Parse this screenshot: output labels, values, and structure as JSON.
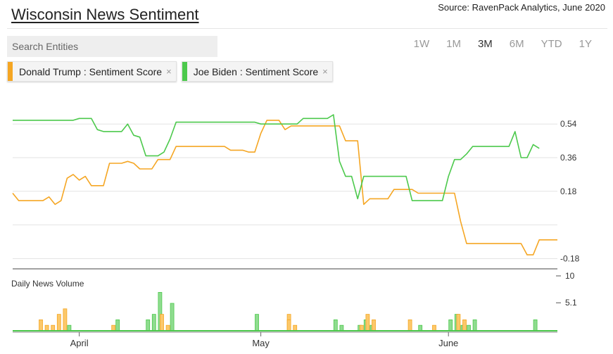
{
  "header": {
    "title": "Wisconsin News Sentiment",
    "source": "Source: RavenPack Analytics, June 2020"
  },
  "search": {
    "placeholder": "Search Entities"
  },
  "ranges": [
    {
      "label": "1W",
      "active": false
    },
    {
      "label": "1M",
      "active": false
    },
    {
      "label": "3M",
      "active": true
    },
    {
      "label": "6M",
      "active": false
    },
    {
      "label": "YTD",
      "active": false
    },
    {
      "label": "1Y",
      "active": false
    }
  ],
  "entities": [
    {
      "label": "Donald Trump : Sentiment Score",
      "color": "#f5a623",
      "close": "×"
    },
    {
      "label": "Joe Biden : Sentiment Score",
      "color": "#4cc94c",
      "close": "×"
    }
  ],
  "chart_data": {
    "type": "line",
    "x_axis": {
      "start": "2020-03-21",
      "end": "2020-06-19",
      "tick_labels": [
        {
          "label": "April",
          "date": "2020-04-01"
        },
        {
          "label": "May",
          "date": "2020-05-01"
        },
        {
          "label": "June",
          "date": "2020-06-01"
        }
      ]
    },
    "sentiment": {
      "y_ticks": [
        {
          "value": 0.54,
          "label": "0.54"
        },
        {
          "value": 0.36,
          "label": "0.36"
        },
        {
          "value": 0.18,
          "label": "0.18"
        },
        {
          "value": 0.0,
          "label": ""
        },
        {
          "value": -0.18,
          "label": "-0.18"
        }
      ],
      "ylim": [
        -0.22,
        0.62
      ],
      "grid": true,
      "series": [
        {
          "entity": 0,
          "color": "#f5a623",
          "points": [
            [
              "2020-03-21",
              0.17
            ],
            [
              "2020-03-22",
              0.13
            ],
            [
              "2020-03-26",
              0.13
            ],
            [
              "2020-03-27",
              0.15
            ],
            [
              "2020-03-28",
              0.11
            ],
            [
              "2020-03-29",
              0.13
            ],
            [
              "2020-03-30",
              0.25
            ],
            [
              "2020-03-31",
              0.27
            ],
            [
              "2020-04-01",
              0.24
            ],
            [
              "2020-04-02",
              0.26
            ],
            [
              "2020-04-03",
              0.21
            ],
            [
              "2020-04-05",
              0.21
            ],
            [
              "2020-04-06",
              0.33
            ],
            [
              "2020-04-08",
              0.33
            ],
            [
              "2020-04-09",
              0.34
            ],
            [
              "2020-04-10",
              0.33
            ],
            [
              "2020-04-11",
              0.3
            ],
            [
              "2020-04-13",
              0.3
            ],
            [
              "2020-04-14",
              0.35
            ],
            [
              "2020-04-16",
              0.35
            ],
            [
              "2020-04-17",
              0.42
            ],
            [
              "2020-04-25",
              0.42
            ],
            [
              "2020-04-26",
              0.4
            ],
            [
              "2020-04-28",
              0.4
            ],
            [
              "2020-04-29",
              0.39
            ],
            [
              "2020-04-30",
              0.39
            ],
            [
              "2020-05-01",
              0.49
            ],
            [
              "2020-05-02",
              0.56
            ],
            [
              "2020-05-04",
              0.56
            ],
            [
              "2020-05-05",
              0.51
            ],
            [
              "2020-05-06",
              0.53
            ],
            [
              "2020-05-14",
              0.53
            ],
            [
              "2020-05-15",
              0.45
            ],
            [
              "2020-05-16",
              0.45
            ],
            [
              "2020-05-17",
              0.45
            ],
            [
              "2020-05-18",
              0.11
            ],
            [
              "2020-05-19",
              0.14
            ],
            [
              "2020-05-22",
              0.14
            ],
            [
              "2020-05-23",
              0.19
            ],
            [
              "2020-05-26",
              0.19
            ],
            [
              "2020-05-27",
              0.17
            ],
            [
              "2020-06-02",
              0.17
            ],
            [
              "2020-06-03",
              0.02
            ],
            [
              "2020-06-04",
              -0.1
            ],
            [
              "2020-06-13",
              -0.1
            ],
            [
              "2020-06-14",
              -0.16
            ],
            [
              "2020-06-15",
              -0.16
            ],
            [
              "2020-06-16",
              -0.08
            ],
            [
              "2020-06-19",
              -0.08
            ]
          ]
        },
        {
          "entity": 1,
          "color": "#4cc94c",
          "points": [
            [
              "2020-03-21",
              0.56
            ],
            [
              "2020-03-31",
              0.56
            ],
            [
              "2020-04-01",
              0.57
            ],
            [
              "2020-04-03",
              0.57
            ],
            [
              "2020-04-04",
              0.51
            ],
            [
              "2020-04-05",
              0.5
            ],
            [
              "2020-04-08",
              0.5
            ],
            [
              "2020-04-09",
              0.54
            ],
            [
              "2020-04-10",
              0.48
            ],
            [
              "2020-04-11",
              0.47
            ],
            [
              "2020-04-12",
              0.37
            ],
            [
              "2020-04-14",
              0.37
            ],
            [
              "2020-04-15",
              0.39
            ],
            [
              "2020-04-16",
              0.46
            ],
            [
              "2020-04-17",
              0.55
            ],
            [
              "2020-04-30",
              0.55
            ],
            [
              "2020-05-01",
              0.54
            ],
            [
              "2020-05-07",
              0.54
            ],
            [
              "2020-05-08",
              0.57
            ],
            [
              "2020-05-12",
              0.57
            ],
            [
              "2020-05-13",
              0.59
            ],
            [
              "2020-05-14",
              0.34
            ],
            [
              "2020-05-15",
              0.26
            ],
            [
              "2020-05-16",
              0.26
            ],
            [
              "2020-05-17",
              0.14
            ],
            [
              "2020-05-18",
              0.26
            ],
            [
              "2020-05-19",
              0.26
            ],
            [
              "2020-05-25",
              0.26
            ],
            [
              "2020-05-26",
              0.13
            ],
            [
              "2020-05-29",
              0.13
            ],
            [
              "2020-05-31",
              0.13
            ],
            [
              "2020-06-01",
              0.26
            ],
            [
              "2020-06-02",
              0.35
            ],
            [
              "2020-06-03",
              0.35
            ],
            [
              "2020-06-04",
              0.38
            ],
            [
              "2020-06-05",
              0.42
            ],
            [
              "2020-06-11",
              0.42
            ],
            [
              "2020-06-12",
              0.5
            ],
            [
              "2020-06-13",
              0.36
            ],
            [
              "2020-06-14",
              0.36
            ],
            [
              "2020-06-15",
              0.43
            ],
            [
              "2020-06-16",
              0.41
            ]
          ]
        }
      ]
    },
    "volume": {
      "label": "Daily News Volume",
      "y_ticks": [
        {
          "value": 10,
          "label": "10"
        },
        {
          "value": 5.1,
          "label": "5.1"
        }
      ],
      "ylim": [
        0,
        10
      ],
      "bars": [
        {
          "date": "2020-03-26",
          "value": 2.0,
          "entity": 0
        },
        {
          "date": "2020-03-27",
          "value": 1.0,
          "entity": 0
        },
        {
          "date": "2020-03-28",
          "value": 1.0,
          "entity": 0
        },
        {
          "date": "2020-03-29",
          "value": 3.0,
          "entity": 0
        },
        {
          "date": "2020-03-30",
          "value": 4.0,
          "entity": 0
        },
        {
          "date": "2020-03-30",
          "value": 1.0,
          "entity": 1
        },
        {
          "date": "2020-04-07",
          "value": 2.0,
          "entity": 1
        },
        {
          "date": "2020-04-07",
          "value": 1.0,
          "entity": 0
        },
        {
          "date": "2020-04-12",
          "value": 2.0,
          "entity": 1
        },
        {
          "date": "2020-04-13",
          "value": 3.0,
          "entity": 1
        },
        {
          "date": "2020-04-14",
          "value": 7.0,
          "entity": 1
        },
        {
          "date": "2020-04-15",
          "value": 3.0,
          "entity": 0
        },
        {
          "date": "2020-04-16",
          "value": 5.0,
          "entity": 1
        },
        {
          "date": "2020-04-16",
          "value": 1.0,
          "entity": 0
        },
        {
          "date": "2020-04-30",
          "value": 3.0,
          "entity": 1
        },
        {
          "date": "2020-05-06",
          "value": 3.0,
          "entity": 0
        },
        {
          "date": "2020-05-06",
          "value": 2.0,
          "entity": 0
        },
        {
          "date": "2020-05-07",
          "value": 1.0,
          "entity": 0
        },
        {
          "date": "2020-05-13",
          "value": 2.0,
          "entity": 1
        },
        {
          "date": "2020-05-14",
          "value": 1.0,
          "entity": 1
        },
        {
          "date": "2020-05-17",
          "value": 1.0,
          "entity": 1
        },
        {
          "date": "2020-05-18",
          "value": 2.0,
          "entity": 1
        },
        {
          "date": "2020-05-18",
          "value": 1.0,
          "entity": 0
        },
        {
          "date": "2020-05-19",
          "value": 3.0,
          "entity": 0
        },
        {
          "date": "2020-05-19",
          "value": 1.0,
          "entity": 1
        },
        {
          "date": "2020-05-20",
          "value": 2.0,
          "entity": 0
        },
        {
          "date": "2020-05-26",
          "value": 2.0,
          "entity": 0
        },
        {
          "date": "2020-05-27",
          "value": 1.0,
          "entity": 1
        },
        {
          "date": "2020-05-30",
          "value": 1.0,
          "entity": 0
        },
        {
          "date": "2020-06-01",
          "value": 2.0,
          "entity": 1
        },
        {
          "date": "2020-06-02",
          "value": 3.0,
          "entity": 1
        },
        {
          "date": "2020-06-03",
          "value": 3.0,
          "entity": 0
        },
        {
          "date": "2020-06-03",
          "value": 1.0,
          "entity": 1
        },
        {
          "date": "2020-06-04",
          "value": 2.0,
          "entity": 0
        },
        {
          "date": "2020-06-04",
          "value": 1.0,
          "entity": 1
        },
        {
          "date": "2020-06-05",
          "value": 2.0,
          "entity": 1
        },
        {
          "date": "2020-06-15",
          "value": 2.0,
          "entity": 1
        }
      ]
    }
  }
}
